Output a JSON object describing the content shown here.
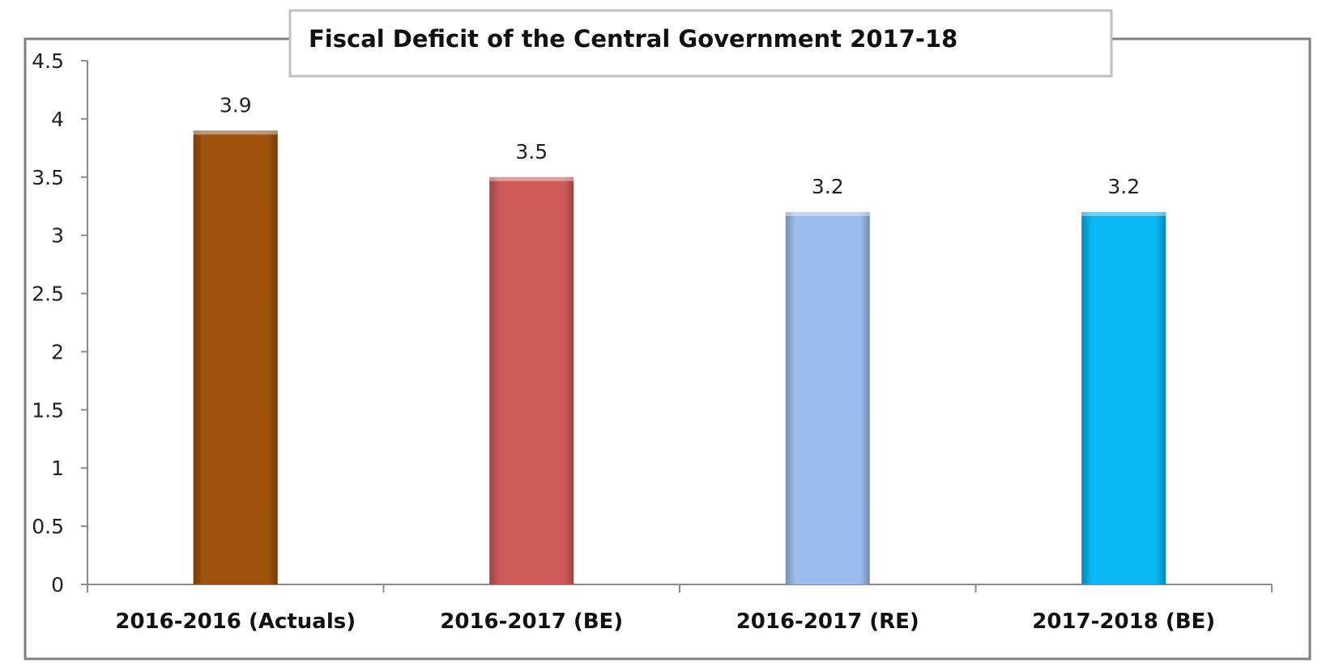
{
  "chart_data": {
    "type": "bar",
    "title": "Fiscal Deficit of the Central Government 2017-18",
    "xlabel": "",
    "ylabel": "",
    "categories": [
      "2016-2016 (Actuals)",
      "2016-2017 (BE)",
      "2016-2017 (RE)",
      "2017-2018 (BE)"
    ],
    "values": [
      3.9,
      3.5,
      3.2,
      3.2
    ],
    "value_labels": [
      "3.9",
      "3.5",
      "3.2",
      "3.2"
    ],
    "yticks": [
      "0",
      "0.5",
      "1",
      "1.5",
      "2",
      "2.5",
      "3",
      "3.5",
      "4",
      "4.5"
    ],
    "ylim": [
      0,
      4.5
    ],
    "bar_colors": [
      "#a0510e",
      "#cf5a59",
      "#9bbdee",
      "#08b7f4"
    ],
    "grid": false,
    "legend": "none"
  }
}
